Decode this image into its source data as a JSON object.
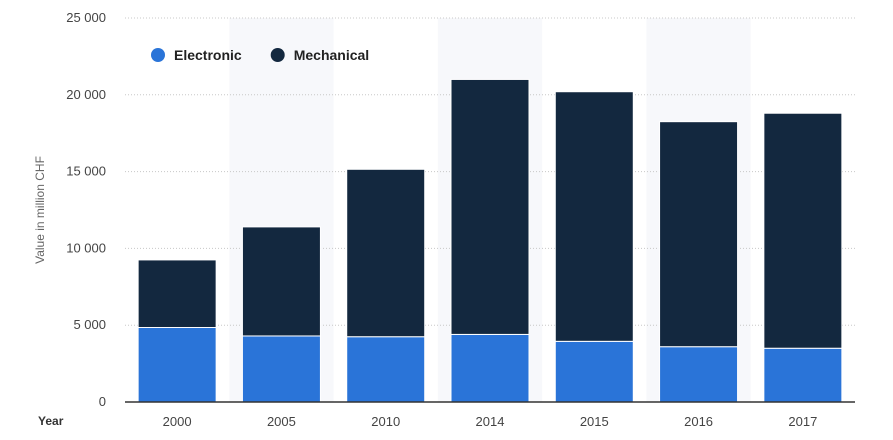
{
  "chart_data": {
    "type": "bar",
    "stacked": true,
    "categories": [
      "2000",
      "2005",
      "2010",
      "2014",
      "2015",
      "2016",
      "2017"
    ],
    "series": [
      {
        "name": "Electronic",
        "color": "#2a74d8",
        "values": [
          4850,
          4300,
          4250,
          4400,
          3950,
          3600,
          3500
        ]
      },
      {
        "name": "Mechanical",
        "color": "#13283f",
        "values": [
          4400,
          7100,
          10900,
          16600,
          16250,
          14650,
          15300
        ]
      }
    ],
    "ylabel": "Value in million CHF",
    "xlabel": "Year",
    "ylim": [
      0,
      25000
    ],
    "yticks": [
      0,
      5000,
      10000,
      15000,
      20000,
      25000
    ],
    "ytick_labels": [
      "0",
      "5 000",
      "10 000",
      "15 000",
      "20 000",
      "25 000"
    ],
    "grid": true,
    "legend_position": "top-left"
  }
}
